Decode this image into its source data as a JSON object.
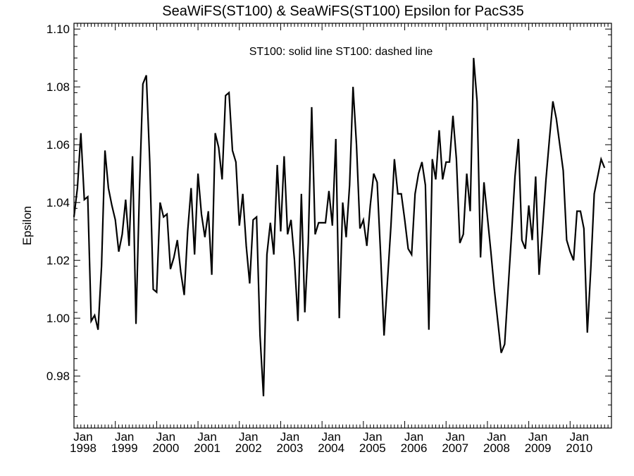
{
  "chart_data": {
    "type": "line",
    "title": "SeaWiFS(ST100) & SeaWiFS(ST100)  Epsilon for PacS35",
    "annotation": "ST100: solid line   ST100: dashed line",
    "ylabel": "Epsilon",
    "xlabel": "",
    "ylim": [
      0.962,
      1.102
    ],
    "yticks": [
      "0.98",
      "1.00",
      "1.02",
      "1.04",
      "1.06",
      "1.08",
      "1.10"
    ],
    "ytick_values": [
      0.98,
      1.0,
      1.02,
      1.04,
      1.06,
      1.08,
      1.1
    ],
    "x_start": "1998-01",
    "x_end": "2010-12",
    "xticks": [
      {
        "month": "Jan",
        "year": "1998"
      },
      {
        "month": "Jan",
        "year": "1999"
      },
      {
        "month": "Jan",
        "year": "2000"
      },
      {
        "month": "Jan",
        "year": "2001"
      },
      {
        "month": "Jan",
        "year": "2002"
      },
      {
        "month": "Jan",
        "year": "2003"
      },
      {
        "month": "Jan",
        "year": "2004"
      },
      {
        "month": "Jan",
        "year": "2005"
      },
      {
        "month": "Jan",
        "year": "2006"
      },
      {
        "month": "Jan",
        "year": "2007"
      },
      {
        "month": "Jan",
        "year": "2008"
      },
      {
        "month": "Jan",
        "year": "2009"
      },
      {
        "month": "Jan",
        "year": "2010"
      }
    ],
    "series": [
      {
        "style": "solid",
        "color": "#000000",
        "points": [
          [
            "1998-01",
            1.035
          ],
          [
            "1998-02",
            1.045
          ],
          [
            "1998-03",
            1.064
          ],
          [
            "1998-04",
            1.041
          ],
          [
            "1998-05",
            1.042
          ],
          [
            "1998-06",
            0.999
          ],
          [
            "1998-07",
            1.001
          ],
          [
            "1998-08",
            0.996
          ],
          [
            "1998-09",
            1.018
          ],
          [
            "1998-10",
            1.058
          ],
          [
            "1998-11",
            1.045
          ],
          [
            "1998-12",
            1.039
          ],
          [
            "1999-01",
            1.034
          ],
          [
            "1999-02",
            1.023
          ],
          [
            "1999-03",
            1.029
          ],
          [
            "1999-04",
            1.041
          ],
          [
            "1999-05",
            1.025
          ],
          [
            "1999-06",
            1.056
          ],
          [
            "1999-07",
            0.998
          ],
          [
            "1999-08",
            1.044
          ],
          [
            "1999-09",
            1.081
          ],
          [
            "1999-10",
            1.084
          ],
          [
            "1999-11",
            1.054
          ],
          [
            "1999-12",
            1.01
          ],
          [
            "2000-01",
            1.009
          ],
          [
            "2000-02",
            1.04
          ],
          [
            "2000-03",
            1.035
          ],
          [
            "2000-04",
            1.036
          ],
          [
            "2000-05",
            1.017
          ],
          [
            "2000-06",
            1.021
          ],
          [
            "2000-07",
            1.027
          ],
          [
            "2000-08",
            1.016
          ],
          [
            "2000-09",
            1.008
          ],
          [
            "2000-10",
            1.03
          ],
          [
            "2000-11",
            1.045
          ],
          [
            "2000-12",
            1.022
          ],
          [
            "2001-01",
            1.05
          ],
          [
            "2001-02",
            1.036
          ],
          [
            "2001-03",
            1.028
          ],
          [
            "2001-04",
            1.037
          ],
          [
            "2001-05",
            1.015
          ],
          [
            "2001-06",
            1.064
          ],
          [
            "2001-07",
            1.059
          ],
          [
            "2001-08",
            1.048
          ],
          [
            "2001-09",
            1.077
          ],
          [
            "2001-10",
            1.078
          ],
          [
            "2001-11",
            1.058
          ],
          [
            "2001-12",
            1.054
          ],
          [
            "2002-01",
            1.032
          ],
          [
            "2002-02",
            1.043
          ],
          [
            "2002-03",
            1.025
          ],
          [
            "2002-04",
            1.012
          ],
          [
            "2002-05",
            1.034
          ],
          [
            "2002-06",
            1.035
          ],
          [
            "2002-07",
            0.994
          ],
          [
            "2002-08",
            0.973
          ],
          [
            "2002-09",
            1.022
          ],
          [
            "2002-10",
            1.033
          ],
          [
            "2002-11",
            1.022
          ],
          [
            "2002-12",
            1.053
          ],
          [
            "2003-01",
            1.03
          ],
          [
            "2003-02",
            1.056
          ],
          [
            "2003-03",
            1.029
          ],
          [
            "2003-04",
            1.034
          ],
          [
            "2003-05",
            1.02
          ],
          [
            "2003-06",
            0.999
          ],
          [
            "2003-07",
            1.043
          ],
          [
            "2003-08",
            1.002
          ],
          [
            "2003-09",
            1.026
          ],
          [
            "2003-10",
            1.073
          ],
          [
            "2003-11",
            1.029
          ],
          [
            "2003-12",
            1.033
          ],
          [
            "2004-01",
            1.033
          ],
          [
            "2004-02",
            1.033
          ],
          [
            "2004-03",
            1.044
          ],
          [
            "2004-04",
            1.032
          ],
          [
            "2004-05",
            1.062
          ],
          [
            "2004-06",
            1.0
          ],
          [
            "2004-07",
            1.04
          ],
          [
            "2004-08",
            1.028
          ],
          [
            "2004-09",
            1.046
          ],
          [
            "2004-10",
            1.08
          ],
          [
            "2004-11",
            1.06
          ],
          [
            "2004-12",
            1.031
          ],
          [
            "2005-01",
            1.034
          ],
          [
            "2005-02",
            1.025
          ],
          [
            "2005-03",
            1.039
          ],
          [
            "2005-04",
            1.05
          ],
          [
            "2005-05",
            1.047
          ],
          [
            "2005-06",
            1.022
          ],
          [
            "2005-07",
            0.994
          ],
          [
            "2005-08",
            1.013
          ],
          [
            "2005-09",
            1.032
          ],
          [
            "2005-10",
            1.055
          ],
          [
            "2005-11",
            1.043
          ],
          [
            "2005-12",
            1.043
          ],
          [
            "2006-01",
            1.034
          ],
          [
            "2006-02",
            1.024
          ],
          [
            "2006-03",
            1.022
          ],
          [
            "2006-04",
            1.043
          ],
          [
            "2006-05",
            1.05
          ],
          [
            "2006-06",
            1.054
          ],
          [
            "2006-07",
            1.046
          ],
          [
            "2006-08",
            0.996
          ],
          [
            "2006-09",
            1.055
          ],
          [
            "2006-10",
            1.048
          ],
          [
            "2006-11",
            1.065
          ],
          [
            "2006-12",
            1.048
          ],
          [
            "2007-01",
            1.054
          ],
          [
            "2007-02",
            1.054
          ],
          [
            "2007-03",
            1.07
          ],
          [
            "2007-04",
            1.055
          ],
          [
            "2007-05",
            1.026
          ],
          [
            "2007-06",
            1.029
          ],
          [
            "2007-07",
            1.05
          ],
          [
            "2007-08",
            1.037
          ],
          [
            "2007-09",
            1.09
          ],
          [
            "2007-10",
            1.075
          ],
          [
            "2007-11",
            1.021
          ],
          [
            "2007-12",
            1.047
          ],
          [
            "2008-01",
            1.035
          ],
          [
            "2008-02",
            1.023
          ],
          [
            "2008-03",
            1.01
          ],
          [
            "2008-04",
            0.999
          ],
          [
            "2008-05",
            0.988
          ],
          [
            "2008-06",
            0.991
          ],
          [
            "2008-07",
            1.01
          ],
          [
            "2008-08",
            1.029
          ],
          [
            "2008-09",
            1.049
          ],
          [
            "2008-10",
            1.062
          ],
          [
            "2008-11",
            1.027
          ],
          [
            "2008-12",
            1.024
          ],
          [
            "2009-01",
            1.039
          ],
          [
            "2009-02",
            1.027
          ],
          [
            "2009-03",
            1.049
          ],
          [
            "2009-04",
            1.015
          ],
          [
            "2009-05",
            1.031
          ],
          [
            "2009-06",
            1.048
          ],
          [
            "2009-07",
            1.062
          ],
          [
            "2009-08",
            1.075
          ],
          [
            "2009-09",
            1.069
          ],
          [
            "2009-10",
            1.06
          ],
          [
            "2009-11",
            1.051
          ],
          [
            "2009-12",
            1.027
          ],
          [
            "2010-01",
            1.023
          ],
          [
            "2010-02",
            1.02
          ],
          [
            "2010-03",
            1.037
          ],
          [
            "2010-04",
            1.037
          ],
          [
            "2010-05",
            1.031
          ],
          [
            "2010-06",
            0.995
          ],
          [
            "2010-07",
            1.017
          ],
          [
            "2010-08",
            1.043
          ],
          [
            "2010-09",
            1.049
          ],
          [
            "2010-10",
            1.055
          ],
          [
            "2010-11",
            1.052
          ]
        ]
      }
    ]
  }
}
